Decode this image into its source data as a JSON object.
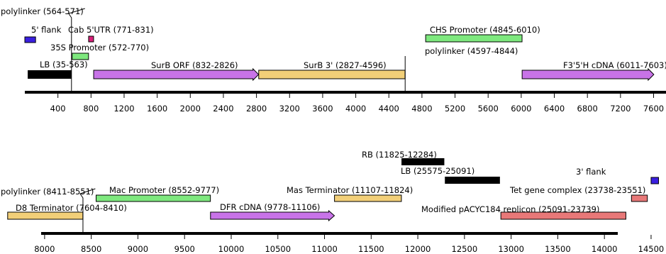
{
  "colors": {
    "black": "#000000",
    "blue": "#3a1fe0",
    "pink": "#d9207a",
    "green": "#7ee87e",
    "purple": "#c873e8",
    "tan": "#f2cf78",
    "red": "#e87878",
    "backbone": "#000000"
  },
  "tracks": [
    {
      "id": "top",
      "axis": {
        "from": 0,
        "to": 7750,
        "ticks": [
          400,
          800,
          1200,
          1600,
          2000,
          2400,
          2800,
          3200,
          3600,
          4000,
          4400,
          4800,
          5200,
          5600,
          6000,
          6400,
          6800,
          7200,
          7600
        ]
      },
      "features": [
        {
          "name": "polylinker-564-571",
          "label": "polylinker  (564-571)",
          "kind": "callout-line",
          "at": 564
        },
        {
          "name": "5-flank",
          "label": "5' flank",
          "kind": "box",
          "start": 0,
          "end": 130,
          "color": "blue"
        },
        {
          "name": "cab-5utr",
          "label": "Cab 5'UTR (771-831)",
          "kind": "box",
          "start": 771,
          "end": 831,
          "color": "pink"
        },
        {
          "name": "35s-promoter",
          "label": "35S Promoter (572-770)",
          "kind": "box",
          "start": 572,
          "end": 770,
          "color": "green"
        },
        {
          "name": "lb-35-563",
          "label": "LB (35-563)",
          "kind": "box",
          "start": 35,
          "end": 563,
          "color": "black"
        },
        {
          "name": "surb-orf",
          "label": "SurB ORF (832-2826)",
          "kind": "arrow",
          "start": 832,
          "end": 2826,
          "color": "purple"
        },
        {
          "name": "surb-3",
          "label": "SurB 3' (2827-4596)",
          "kind": "box",
          "start": 2827,
          "end": 4596,
          "color": "tan"
        },
        {
          "name": "polylinker-4597-4844",
          "label": "polylinker  (4597-4844)",
          "kind": "callout-line",
          "at": 4597
        },
        {
          "name": "chs-promoter",
          "label": "CHS Promoter (4845-6010)",
          "kind": "box",
          "start": 4845,
          "end": 6010,
          "color": "green"
        },
        {
          "name": "f35h-cdna",
          "label": "F3'5'H cDNA (6011-7603)",
          "kind": "arrow",
          "start": 6011,
          "end": 7603,
          "color": "purple"
        }
      ]
    },
    {
      "id": "bottom",
      "axis": {
        "from": 7750,
        "to": 14660,
        "ticks": [
          8000,
          8500,
          9000,
          9500,
          10000,
          10500,
          11000,
          11500,
          12000,
          12500,
          13000,
          13500,
          14000,
          14500
        ]
      },
      "features": [
        {
          "name": "rb",
          "label": "RB (11825-12284)",
          "kind": "box",
          "start": 11825,
          "end": 12284,
          "color": "black"
        },
        {
          "name": "lb-25575-25091",
          "label": "LB (25575-25091)",
          "kind": "box",
          "start": 12290,
          "end": 12880,
          "color": "black"
        },
        {
          "name": "3-flank",
          "label": "3' flank",
          "kind": "box",
          "start": 14500,
          "end": 14580,
          "color": "blue"
        },
        {
          "name": "polylinker-8411-8551",
          "label": "polylinker  (8411-8551)",
          "kind": "callout-line",
          "at": 8411
        },
        {
          "name": "mac-promoter",
          "label": "Mac Promoter (8552-9777)",
          "kind": "box",
          "start": 8552,
          "end": 9777,
          "color": "green"
        },
        {
          "name": "mas-terminator",
          "label": "Mas Terminator (11107-11824)",
          "kind": "box",
          "start": 11107,
          "end": 11824,
          "color": "tan"
        },
        {
          "name": "tet-gene-complex",
          "label": "Tet gene complex (23738-23551)",
          "kind": "box",
          "start": 14290,
          "end": 14460,
          "color": "red"
        },
        {
          "name": "d8-terminator",
          "label": "D8 Terminator (7604-8410)",
          "kind": "box",
          "start": 7604,
          "end": 8410,
          "color": "tan"
        },
        {
          "name": "dfr-cdna",
          "label": "DFR cDNA (9778-11106)",
          "kind": "arrow",
          "start": 9778,
          "end": 11106,
          "color": "purple"
        },
        {
          "name": "pacyc184-replicon",
          "label": "Modified pACYC184 replicon (25091-23739)",
          "kind": "box",
          "start": 12890,
          "end": 14230,
          "color": "red"
        }
      ]
    }
  ]
}
